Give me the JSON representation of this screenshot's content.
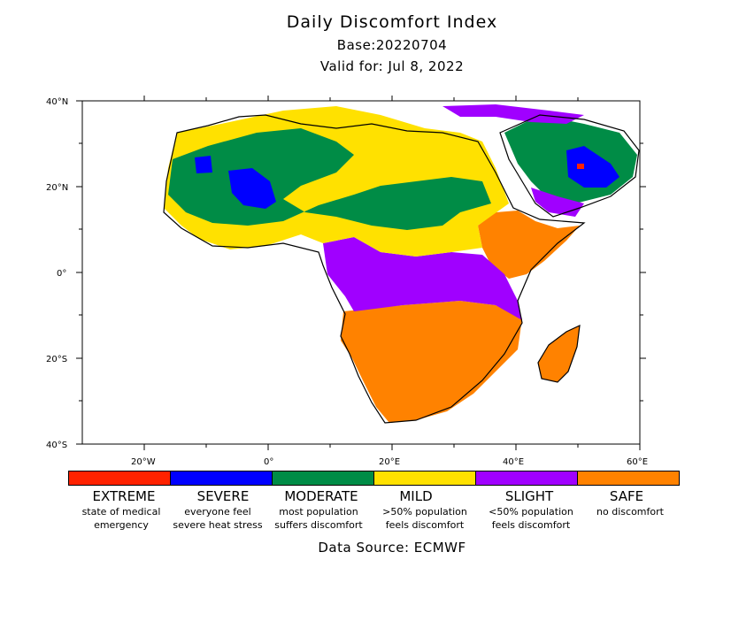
{
  "header": {
    "title": "Daily Discomfort Index",
    "base": "Base:20220704",
    "valid": "Valid for: Jul 8, 2022"
  },
  "axes": {
    "lat_labels": [
      "40°N",
      "20°N",
      "0°",
      "20°S",
      "40°S"
    ],
    "lon_labels": [
      "20°W",
      "0°",
      "20°E",
      "40°E",
      "60°E"
    ]
  },
  "legend": [
    {
      "name": "EXTREME",
      "desc1": "state of medical",
      "desc2": "emergency",
      "color": "#ff2200"
    },
    {
      "name": "SEVERE",
      "desc1": "everyone feel",
      "desc2": "severe heat stress",
      "color": "#0000ff"
    },
    {
      "name": "MODERATE",
      "desc1": "most population",
      "desc2": "suffers discomfort",
      "color": "#008c46"
    },
    {
      "name": "MILD",
      "desc1": ">50% population",
      "desc2": "feels discomfort",
      "color": "#ffe100"
    },
    {
      "name": "SLIGHT",
      "desc1": "<50% population",
      "desc2": "feels discomfort",
      "color": "#a000ff"
    },
    {
      "name": "SAFE",
      "desc1": "no discomfort",
      "desc2": "",
      "color": "#ff8200"
    }
  ],
  "footer": {
    "source": "Data Source: ECMWF"
  }
}
